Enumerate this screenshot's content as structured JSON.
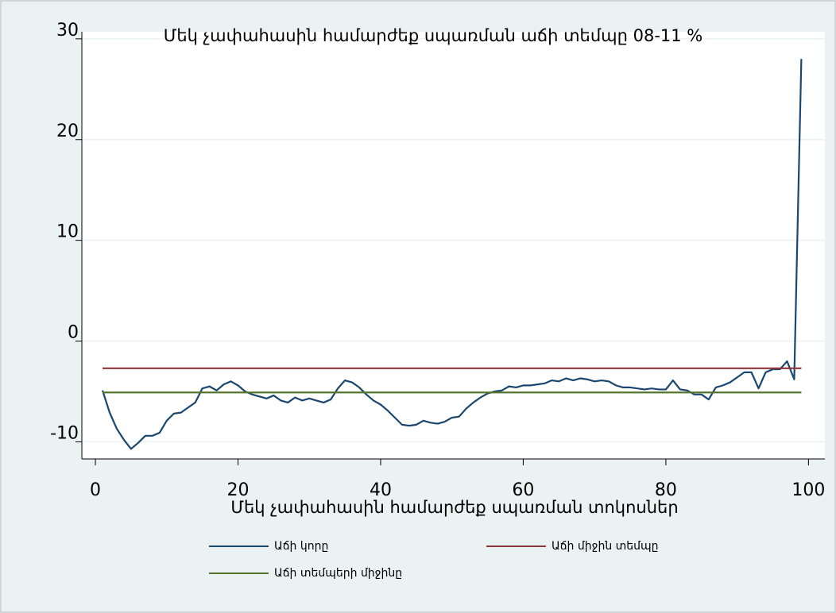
{
  "chart_data": {
    "type": "line",
    "title": "Մեկ չափահասին համարժեք սպառման աճի տեմպը  08-11 %",
    "x_label": "Մեկ չափահասին համարժեք սպառման տոկոսներ",
    "xlim": [
      -1.9,
      102.3
    ],
    "ylim": [
      -11.7,
      30.7
    ],
    "xticks": [
      0,
      20,
      40,
      60,
      80,
      100
    ],
    "yticks": [
      -10,
      0,
      10,
      20,
      30
    ],
    "grid": true,
    "legend": "bottom",
    "series": [
      {
        "name": "Աճի կորը",
        "color": "#1a476f",
        "x": [
          1,
          2,
          3,
          4,
          5,
          6,
          7,
          8,
          9,
          10,
          11,
          12,
          13,
          14,
          15,
          16,
          17,
          18,
          19,
          20,
          21,
          22,
          23,
          24,
          25,
          26,
          27,
          28,
          29,
          30,
          31,
          32,
          33,
          34,
          35,
          36,
          37,
          38,
          39,
          40,
          41,
          42,
          43,
          44,
          45,
          46,
          47,
          48,
          49,
          50,
          51,
          52,
          53,
          54,
          55,
          56,
          57,
          58,
          59,
          60,
          61,
          62,
          63,
          64,
          65,
          66,
          67,
          68,
          69,
          70,
          71,
          72,
          73,
          74,
          75,
          76,
          77,
          78,
          79,
          80,
          81,
          82,
          83,
          84,
          85,
          86,
          87,
          88,
          89,
          90,
          91,
          92,
          93,
          94,
          95,
          96,
          97,
          98,
          99
        ],
        "values": [
          -4.9,
          -7.1,
          -8.7,
          -9.8,
          -10.7,
          -10.1,
          -9.4,
          -9.4,
          -9.1,
          -7.9,
          -7.2,
          -7.1,
          -6.6,
          -6.1,
          -4.7,
          -4.5,
          -4.9,
          -4.3,
          -4.0,
          -4.4,
          -5.0,
          -5.3,
          -5.5,
          -5.7,
          -5.4,
          -5.9,
          -6.1,
          -5.6,
          -5.9,
          -5.7,
          -5.9,
          -6.1,
          -5.8,
          -4.7,
          -3.9,
          -4.1,
          -4.6,
          -5.3,
          -5.9,
          -6.3,
          -6.9,
          -7.6,
          -8.3,
          -8.4,
          -8.3,
          -7.9,
          -8.1,
          -8.2,
          -8.0,
          -7.6,
          -7.5,
          -6.7,
          -6.1,
          -5.6,
          -5.2,
          -5.0,
          -4.9,
          -4.5,
          -4.6,
          -4.4,
          -4.4,
          -4.3,
          -4.2,
          -3.9,
          -4.0,
          -3.7,
          -3.9,
          -3.7,
          -3.8,
          -4.0,
          -3.9,
          -4.0,
          -4.4,
          -4.6,
          -4.6,
          -4.7,
          -4.8,
          -4.7,
          -4.8,
          -4.8,
          -3.9,
          -4.8,
          -4.9,
          -5.3,
          -5.3,
          -5.8,
          -4.6,
          -4.4,
          -4.1,
          -3.6,
          -3.1,
          -3.1,
          -4.7,
          -3.1,
          -2.8,
          -2.8,
          -2.0,
          -3.8,
          28.0
        ]
      },
      {
        "name": "Աճի միջին տեմպը",
        "color": "#90353b",
        "x": [
          1,
          99
        ],
        "values": [
          -2.7,
          -2.7
        ]
      },
      {
        "name": "Աճի տեմպերի միջինը",
        "color": "#55752f",
        "x": [
          1,
          99
        ],
        "values": [
          -5.1,
          -5.1
        ]
      }
    ]
  }
}
